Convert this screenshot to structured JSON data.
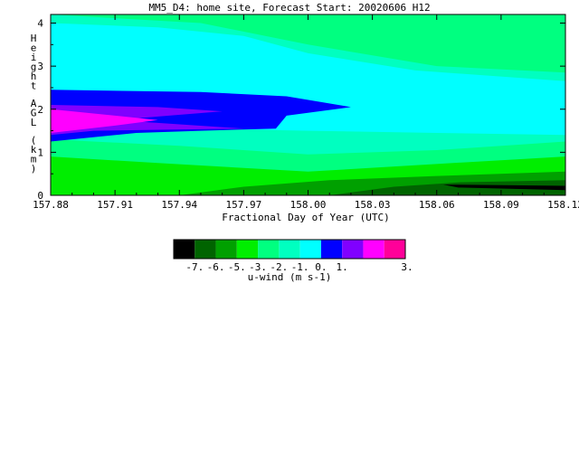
{
  "chart_data": {
    "type": "heatmap",
    "title": "MM5_D4: home site,  Forecast Start: 20020606 H12",
    "xlabel": "Fractional Day of Year (UTC)",
    "ylabel": "Height AGL (km)",
    "xlim": [
      157.88,
      158.12
    ],
    "ylim": [
      0,
      4.2
    ],
    "x_ticks": [
      "157.88",
      "157.91",
      "157.94",
      "157.97",
      "158.00",
      "158.03",
      "158.06",
      "158.09",
      "158.12"
    ],
    "y_ticks": [
      "0",
      "1",
      "2",
      "3",
      "4"
    ],
    "grid": false,
    "colorbar": {
      "label": "u-wind (m s-1)",
      "tick_labels": [
        "-7.",
        "-6.",
        "-5.",
        "-3.",
        "-2.",
        "-1.",
        "0.",
        "1.",
        "3."
      ],
      "colors": [
        "#000000",
        "#006400",
        "#00a000",
        "#00ee00",
        "#00ff80",
        "#00ffc0",
        "#00ffff",
        "#0000ff",
        "#8000ff",
        "#ff00ff",
        "#ff0099"
      ]
    },
    "contour_polygons": [
      {
        "level_color": "#00ffc0",
        "points": [
          [
            157.88,
            4.2
          ],
          [
            158.12,
            4.2
          ],
          [
            158.12,
            0
          ],
          [
            157.88,
            0
          ]
        ]
      },
      {
        "level_color": "#00ff80",
        "points": [
          [
            157.88,
            4.2
          ],
          [
            157.95,
            4.0
          ],
          [
            158.0,
            3.5
          ],
          [
            158.06,
            3.0
          ],
          [
            158.12,
            2.85
          ],
          [
            158.12,
            4.2
          ]
        ]
      },
      {
        "level_color": "#00ffff",
        "points": [
          [
            157.88,
            4.0
          ],
          [
            157.93,
            3.9
          ],
          [
            157.97,
            3.7
          ],
          [
            158.0,
            3.3
          ],
          [
            158.05,
            2.9
          ],
          [
            158.12,
            2.65
          ],
          [
            158.12,
            1.4
          ],
          [
            158.06,
            1.45
          ],
          [
            158.0,
            1.5
          ],
          [
            157.95,
            1.55
          ],
          [
            157.88,
            1.6
          ]
        ]
      },
      {
        "level_color": "#00ff80",
        "points": [
          [
            157.88,
            1.3
          ],
          [
            157.94,
            1.15
          ],
          [
            158.0,
            0.95
          ],
          [
            158.06,
            1.05
          ],
          [
            158.12,
            1.25
          ],
          [
            158.12,
            0
          ],
          [
            157.88,
            0
          ]
        ]
      },
      {
        "level_color": "#00ee00",
        "points": [
          [
            157.88,
            0.9
          ],
          [
            157.93,
            0.75
          ],
          [
            158.0,
            0.55
          ],
          [
            158.05,
            0.7
          ],
          [
            158.12,
            0.9
          ],
          [
            158.12,
            0
          ],
          [
            157.88,
            0
          ]
        ]
      },
      {
        "level_color": "#00a000",
        "points": [
          [
            157.94,
            0
          ],
          [
            157.97,
            0.2
          ],
          [
            158.01,
            0.35
          ],
          [
            158.06,
            0.45
          ],
          [
            158.12,
            0.55
          ],
          [
            158.12,
            0
          ]
        ]
      },
      {
        "level_color": "#006400",
        "points": [
          [
            158.01,
            0
          ],
          [
            158.04,
            0.2
          ],
          [
            158.07,
            0.3
          ],
          [
            158.12,
            0.35
          ],
          [
            158.12,
            0
          ]
        ]
      },
      {
        "level_color": "#000000",
        "points": [
          [
            158.063,
            0.25
          ],
          [
            158.12,
            0.22
          ],
          [
            158.12,
            0.12
          ],
          [
            158.07,
            0.18
          ]
        ]
      },
      {
        "level_color": "#0000ff",
        "points": [
          [
            157.88,
            2.45
          ],
          [
            157.95,
            2.4
          ],
          [
            157.99,
            2.3
          ],
          [
            158.02,
            2.05
          ],
          [
            157.99,
            1.85
          ],
          [
            157.985,
            1.55
          ],
          [
            157.95,
            1.5
          ],
          [
            157.92,
            1.45
          ],
          [
            157.88,
            1.25
          ]
        ]
      },
      {
        "level_color": "#8000ff",
        "points": [
          [
            157.88,
            2.1
          ],
          [
            157.93,
            2.05
          ],
          [
            157.96,
            1.95
          ],
          [
            157.91,
            1.75
          ],
          [
            157.97,
            1.55
          ],
          [
            157.9,
            1.5
          ],
          [
            157.88,
            1.4
          ]
        ]
      },
      {
        "level_color": "#ff00ff",
        "points": [
          [
            157.88,
            2.0
          ],
          [
            157.91,
            1.85
          ],
          [
            157.93,
            1.75
          ],
          [
            157.91,
            1.62
          ],
          [
            157.88,
            1.45
          ]
        ]
      }
    ]
  }
}
